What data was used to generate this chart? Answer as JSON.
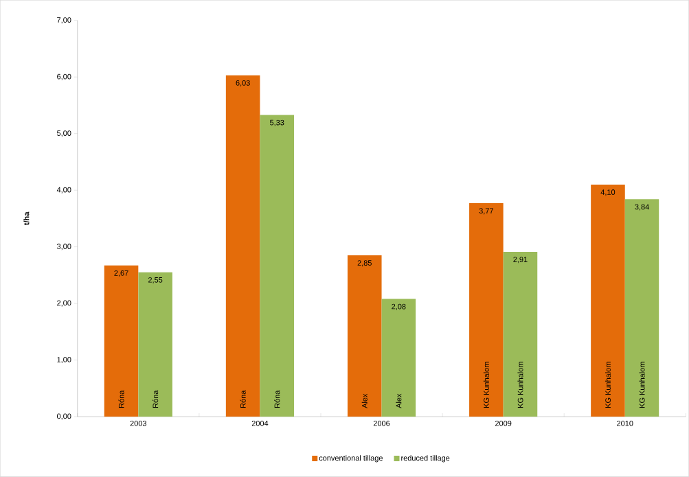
{
  "chart_data": {
    "type": "bar",
    "ylabel": "t/ha",
    "categories": [
      "2003",
      "2004",
      "2006",
      "2009",
      "2010"
    ],
    "series": [
      {
        "name": "conventional tillage",
        "color": "#e46c0a",
        "values": [
          2.67,
          6.03,
          2.85,
          3.77,
          4.1
        ],
        "value_labels": [
          "2,67",
          "6,03",
          "2,85",
          "3,77",
          "4,10"
        ]
      },
      {
        "name": "reduced tillage",
        "color": "#9bbb59",
        "values": [
          2.55,
          5.33,
          2.08,
          2.91,
          3.84
        ],
        "value_labels": [
          "2,55",
          "5,33",
          "2,08",
          "2,91",
          "3,84"
        ]
      }
    ],
    "ylim": [
      0,
      7
    ],
    "yticks": [
      {
        "value": 0,
        "label": "0,00"
      },
      {
        "value": 1,
        "label": "1,00"
      },
      {
        "value": 2,
        "label": "2,00"
      },
      {
        "value": 3,
        "label": "3,00"
      },
      {
        "value": 4,
        "label": "4,00"
      },
      {
        "value": 5,
        "label": "5,00"
      },
      {
        "value": 6,
        "label": "6,00"
      },
      {
        "value": 7,
        "label": "7,00"
      }
    ],
    "annotations": [
      "Róna",
      "Róna",
      "Róna",
      "Róna",
      "Alex",
      "Alex",
      "KG Kunhalom",
      "KG Kunhalom",
      "KG Kunhalom",
      "KG Kunhalom"
    ],
    "legend": "bottom"
  }
}
